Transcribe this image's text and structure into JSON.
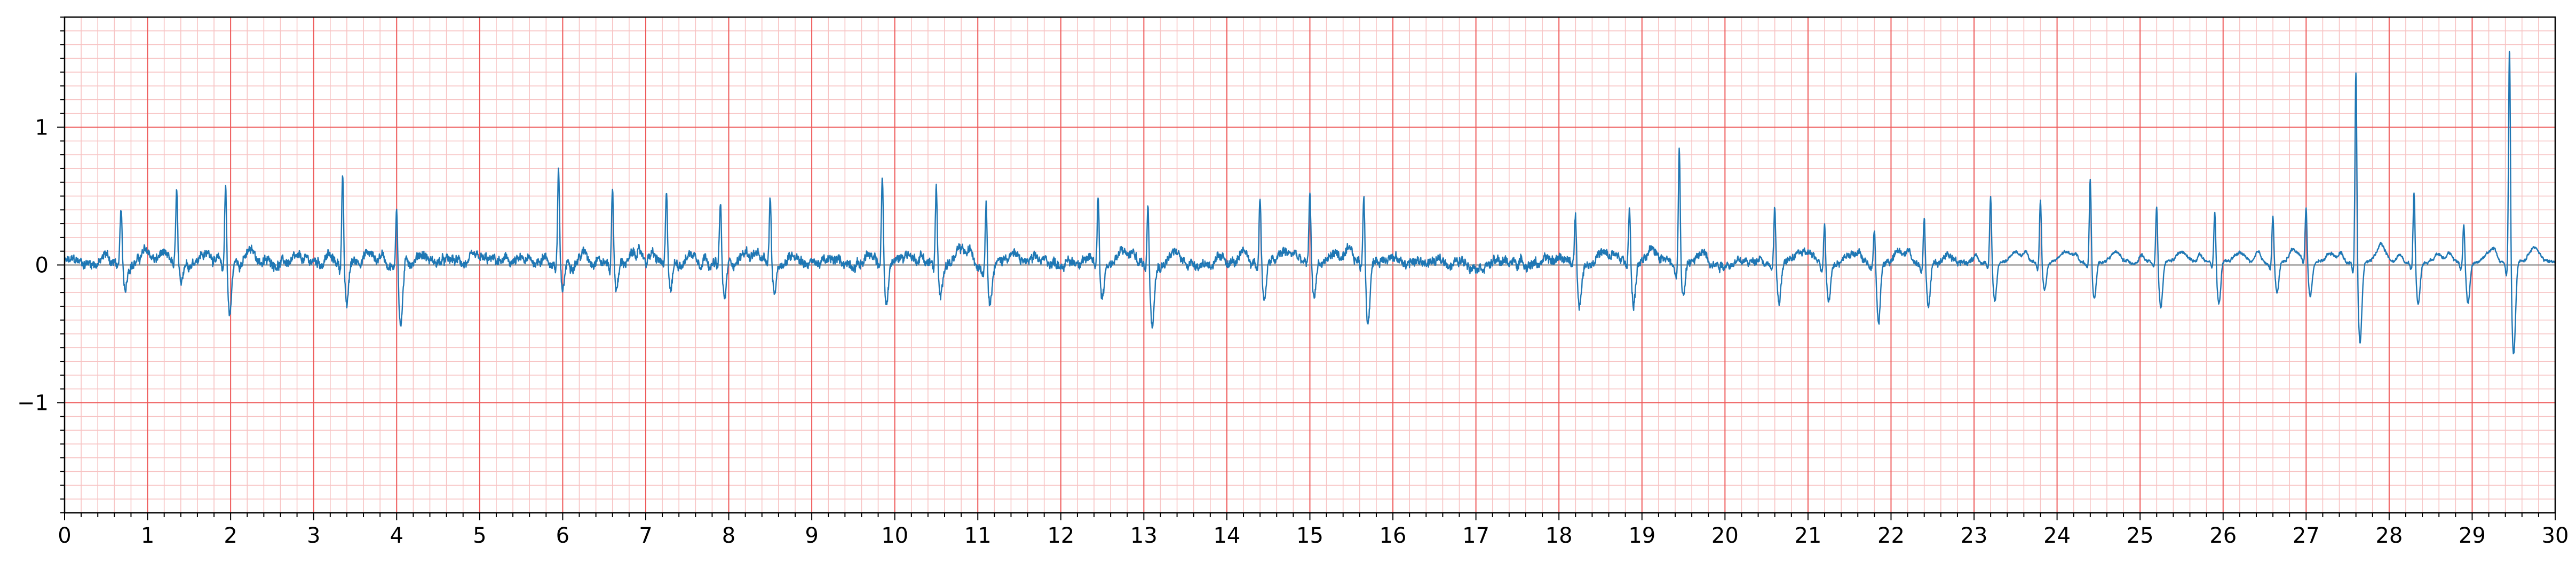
{
  "chart_data": {
    "type": "line",
    "title": "",
    "xlabel": "",
    "ylabel": "",
    "xlim": [
      0,
      30
    ],
    "ylim": [
      -1.8,
      1.8
    ],
    "x_ticks": [
      0,
      1,
      2,
      3,
      4,
      5,
      6,
      7,
      8,
      9,
      10,
      11,
      12,
      13,
      14,
      15,
      16,
      17,
      18,
      19,
      20,
      21,
      22,
      23,
      24,
      25,
      26,
      27,
      28,
      29,
      30
    ],
    "x_tick_labels": [
      "0",
      "1",
      "2",
      "3",
      "4",
      "5",
      "6",
      "7",
      "8",
      "9",
      "10",
      "11",
      "12",
      "13",
      "14",
      "15",
      "16",
      "17",
      "18",
      "19",
      "20",
      "21",
      "22",
      "23",
      "24",
      "25",
      "26",
      "27",
      "28",
      "29",
      "30"
    ],
    "y_ticks": [
      -1,
      0,
      1
    ],
    "y_tick_labels": [
      "−1",
      "0",
      "1"
    ],
    "grid": {
      "major": true,
      "minor": true,
      "major_step_x": 1,
      "minor_step_x": 0.2,
      "major_step_y": 1,
      "minor_step_y": 0.1
    },
    "legend": "none",
    "colors": {
      "line": "#1f77b4",
      "grid_major": "#ee5a5a",
      "grid_minor": "#f7c3c3",
      "baseline": "#8c8c8c"
    },
    "series": [
      {
        "beats": [
          {
            "t": 0.68,
            "r": 0.38,
            "s": -0.2,
            "q": -0.05
          },
          {
            "t": 1.35,
            "r": 0.52,
            "s": -0.2,
            "q": -0.05
          },
          {
            "t": 1.94,
            "r": 0.6,
            "s": -0.38,
            "q": -0.06
          },
          {
            "t": 3.35,
            "r": 0.7,
            "s": -0.32,
            "q": -0.06
          },
          {
            "t": 4.0,
            "r": 0.44,
            "s": -0.45,
            "q": -0.06
          },
          {
            "t": 5.95,
            "r": 0.68,
            "s": -0.22,
            "q": -0.05
          },
          {
            "t": 6.6,
            "r": 0.55,
            "s": -0.18,
            "q": -0.05
          },
          {
            "t": 7.25,
            "r": 0.47,
            "s": -0.2,
            "q": -0.05
          },
          {
            "t": 7.9,
            "r": 0.45,
            "s": -0.28,
            "q": -0.05
          },
          {
            "t": 8.5,
            "r": 0.47,
            "s": -0.22,
            "q": -0.05
          },
          {
            "t": 9.85,
            "r": 0.66,
            "s": -0.32,
            "q": -0.05
          },
          {
            "t": 10.5,
            "r": 0.55,
            "s": -0.28,
            "q": -0.05
          },
          {
            "t": 11.1,
            "r": 0.48,
            "s": -0.25,
            "q": -0.05
          },
          {
            "t": 12.45,
            "r": 0.5,
            "s": -0.24,
            "q": -0.05
          },
          {
            "t": 13.05,
            "r": 0.45,
            "s": -0.42,
            "q": -0.06
          },
          {
            "t": 14.4,
            "r": 0.52,
            "s": -0.26,
            "q": -0.05
          },
          {
            "t": 15.0,
            "r": 0.52,
            "s": -0.26,
            "q": -0.05
          },
          {
            "t": 15.65,
            "r": 0.52,
            "s": -0.42,
            "q": -0.05
          },
          {
            "t": 18.2,
            "r": 0.38,
            "s": -0.3,
            "q": -0.05
          },
          {
            "t": 18.85,
            "r": 0.44,
            "s": -0.3,
            "q": -0.05
          },
          {
            "t": 19.45,
            "r": 0.86,
            "s": -0.25,
            "q": -0.06
          },
          {
            "t": 20.6,
            "r": 0.4,
            "s": -0.3,
            "q": -0.05
          },
          {
            "t": 21.2,
            "r": 0.3,
            "s": -0.25,
            "q": -0.05
          },
          {
            "t": 21.8,
            "r": 0.25,
            "s": -0.45,
            "q": -0.05
          },
          {
            "t": 22.4,
            "r": 0.38,
            "s": -0.3,
            "q": -0.05
          },
          {
            "t": 23.2,
            "r": 0.48,
            "s": -0.28,
            "q": -0.05
          },
          {
            "t": 23.8,
            "r": 0.47,
            "s": -0.2,
            "q": -0.05
          },
          {
            "t": 24.4,
            "r": 0.63,
            "s": -0.26,
            "q": -0.05
          },
          {
            "t": 25.2,
            "r": 0.42,
            "s": -0.34,
            "q": -0.05
          },
          {
            "t": 25.9,
            "r": 0.38,
            "s": -0.3,
            "q": -0.05
          },
          {
            "t": 26.6,
            "r": 0.36,
            "s": -0.22,
            "q": -0.05
          },
          {
            "t": 27.0,
            "r": 0.4,
            "s": -0.25,
            "q": -0.05
          },
          {
            "t": 27.6,
            "r": 1.43,
            "s": -0.58,
            "q": -0.08
          },
          {
            "t": 28.3,
            "r": 0.53,
            "s": -0.3,
            "q": -0.05
          },
          {
            "t": 28.9,
            "r": 0.3,
            "s": -0.3,
            "q": -0.05
          },
          {
            "t": 29.45,
            "r": 1.6,
            "s": -0.68,
            "q": -0.1
          }
        ]
      }
    ]
  }
}
